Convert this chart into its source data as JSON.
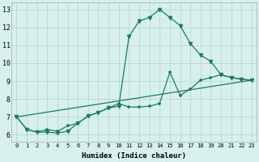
{
  "xlabel": "Humidex (Indice chaleur)",
  "bg_color": "#d8f0ec",
  "grid_color": "#b8d8d0",
  "line_color": "#1a7a6a",
  "xlim": [
    -0.5,
    23.5
  ],
  "ylim": [
    5.6,
    13.4
  ],
  "xticks": [
    0,
    1,
    2,
    3,
    4,
    5,
    6,
    7,
    8,
    9,
    10,
    11,
    12,
    13,
    14,
    15,
    16,
    17,
    18,
    19,
    20,
    21,
    22,
    23
  ],
  "yticks": [
    6,
    7,
    8,
    9,
    10,
    11,
    12,
    13
  ],
  "line1_x": [
    0,
    1,
    2,
    3,
    4,
    5,
    6,
    7,
    8,
    9,
    10,
    11,
    12,
    13,
    14,
    15,
    16,
    17,
    18,
    19,
    20,
    21,
    22,
    23
  ],
  "line1_y": [
    7.0,
    6.3,
    6.15,
    6.15,
    6.1,
    6.2,
    6.65,
    7.05,
    7.25,
    7.5,
    7.6,
    11.5,
    12.35,
    12.55,
    13.0,
    12.55,
    12.1,
    11.1,
    10.45,
    10.1,
    9.35,
    9.2,
    9.1,
    9.05
  ],
  "line2_x": [
    0,
    1,
    2,
    3,
    4,
    5,
    6,
    7,
    8,
    9,
    10,
    11,
    12,
    13,
    14,
    15,
    16,
    17,
    18,
    19,
    20,
    21,
    22,
    23
  ],
  "line2_y": [
    7.0,
    6.3,
    6.15,
    6.3,
    6.2,
    6.5,
    6.65,
    7.05,
    7.25,
    7.5,
    7.75,
    7.55,
    7.55,
    7.6,
    7.75,
    9.5,
    8.2,
    8.55,
    9.05,
    9.2,
    9.35,
    9.2,
    9.1,
    9.05
  ],
  "line3_x": [
    0,
    23
  ],
  "line3_y": [
    7.0,
    9.05
  ]
}
